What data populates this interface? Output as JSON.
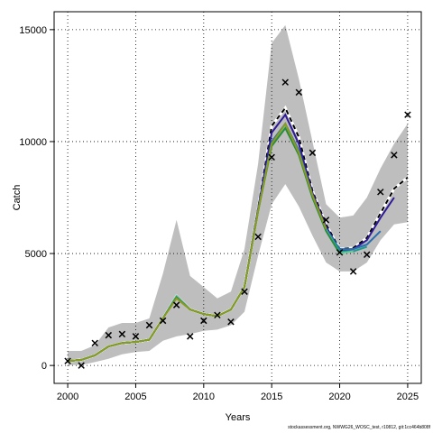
{
  "footer": "stockassessment.org, NWWG26_WOSC_test, r10812, git:1cc464b808f",
  "chart_data": {
    "type": "line",
    "title": "",
    "xlabel": "Years",
    "ylabel": "Catch",
    "xlim": [
      1999,
      2026
    ],
    "ylim": [
      -800,
      15800
    ],
    "xticks": [
      2000,
      2005,
      2010,
      2015,
      2020,
      2025
    ],
    "yticks": [
      0,
      5000,
      10000,
      15000
    ],
    "grid": true,
    "legend": "none",
    "band": {
      "x": [
        2000,
        2001,
        2002,
        2003,
        2004,
        2005,
        2006,
        2007,
        2008,
        2009,
        2010,
        2011,
        2012,
        2013,
        2014,
        2015,
        2016,
        2017,
        2018,
        2019,
        2020,
        2021,
        2022,
        2023,
        2024,
        2025
      ],
      "lower": [
        20,
        20,
        150,
        300,
        500,
        600,
        650,
        1100,
        1300,
        1400,
        1550,
        1600,
        1800,
        2400,
        4900,
        7200,
        8100,
        7100,
        5800,
        4600,
        4200,
        4200,
        4600,
        5600,
        6300,
        6400
      ],
      "upper": [
        650,
        650,
        900,
        1700,
        1900,
        1900,
        2100,
        4100,
        6500,
        4000,
        3500,
        3000,
        3300,
        5200,
        9000,
        14400,
        15200,
        12800,
        10000,
        7200,
        6600,
        6700,
        7500,
        8800,
        9900,
        10800
      ],
      "color": "#bebebe"
    },
    "series": [
      {
        "color": "#000000",
        "dashed": true,
        "x": [
          2000,
          2001,
          2002,
          2003,
          2004,
          2005,
          2006,
          2007,
          2008,
          2009,
          2010,
          2011,
          2012,
          2013,
          2014,
          2015,
          2016,
          2017,
          2018,
          2019,
          2020,
          2021,
          2022,
          2023,
          2024,
          2025
        ],
        "values": [
          200,
          250,
          450,
          850,
          1000,
          1050,
          1150,
          2100,
          3100,
          2500,
          2300,
          2200,
          2500,
          3500,
          7000,
          10700,
          11500,
          10200,
          7800,
          6300,
          5200,
          5250,
          5700,
          6800,
          7900,
          8400
        ]
      },
      {
        "color": "#2E1A99",
        "x": [
          2000,
          2001,
          2002,
          2003,
          2004,
          2005,
          2006,
          2007,
          2008,
          2009,
          2010,
          2011,
          2012,
          2013,
          2014,
          2015,
          2016,
          2017,
          2018,
          2019,
          2020,
          2021,
          2022,
          2023,
          2024
        ],
        "values": [
          200,
          250,
          450,
          850,
          1000,
          1050,
          1150,
          2100,
          3100,
          2500,
          2300,
          2200,
          2500,
          3500,
          7000,
          10400,
          11200,
          9900,
          7700,
          6200,
          5150,
          5200,
          5600,
          6600,
          7500
        ]
      },
      {
        "color": "#2A6FB0",
        "x": [
          2000,
          2001,
          2002,
          2003,
          2004,
          2005,
          2006,
          2007,
          2008,
          2009,
          2010,
          2011,
          2012,
          2013,
          2014,
          2015,
          2016,
          2017,
          2018,
          2019,
          2020,
          2021,
          2022,
          2023
        ],
        "values": [
          200,
          250,
          450,
          850,
          1000,
          1050,
          1150,
          2100,
          3100,
          2500,
          2300,
          2200,
          2500,
          3500,
          6900,
          10000,
          10800,
          9600,
          7600,
          6100,
          5200,
          5200,
          5400,
          6000
        ]
      },
      {
        "color": "#1E9B8A",
        "x": [
          2000,
          2001,
          2002,
          2003,
          2004,
          2005,
          2006,
          2007,
          2008,
          2009,
          2010,
          2011,
          2012,
          2013,
          2014,
          2015,
          2016,
          2017,
          2018,
          2019,
          2020,
          2021,
          2022
        ],
        "values": [
          200,
          250,
          450,
          850,
          1000,
          1050,
          1150,
          2100,
          3100,
          2500,
          2300,
          2200,
          2500,
          3500,
          6900,
          9900,
          10700,
          9500,
          7500,
          6050,
          5100,
          5100,
          5300
        ]
      },
      {
        "color": "#6CC99A",
        "x": [
          2000,
          2001,
          2002,
          2003,
          2004,
          2005,
          2006,
          2007,
          2008,
          2009,
          2010,
          2011,
          2012,
          2013,
          2014,
          2015,
          2016,
          2017,
          2018,
          2019,
          2020,
          2021
        ],
        "values": [
          200,
          250,
          450,
          850,
          1000,
          1050,
          1150,
          2100,
          3100,
          2500,
          2300,
          2200,
          2500,
          3500,
          6900,
          9900,
          10700,
          9500,
          7500,
          6050,
          5000,
          5100
        ]
      },
      {
        "color": "#2A8B3F",
        "x": [
          2000,
          2001,
          2002,
          2003,
          2004,
          2005,
          2006,
          2007,
          2008,
          2009,
          2010,
          2011,
          2012,
          2013,
          2014,
          2015,
          2016,
          2017,
          2018,
          2019,
          2020
        ],
        "values": [
          200,
          250,
          450,
          850,
          1000,
          1050,
          1150,
          2100,
          3050,
          2500,
          2300,
          2200,
          2500,
          3500,
          6900,
          9800,
          10600,
          9400,
          7500,
          6000,
          5000
        ]
      },
      {
        "color": "#8C9A1E",
        "x": [
          2000,
          2001,
          2002,
          2003,
          2004,
          2005,
          2006,
          2007,
          2008,
          2009,
          2010,
          2011,
          2012,
          2013,
          2014,
          2015,
          2016,
          2017,
          2018,
          2019
        ],
        "values": [
          200,
          250,
          450,
          850,
          1000,
          1050,
          1150,
          2100,
          3000,
          2500,
          2300,
          2200,
          2500,
          3500,
          6900,
          9900,
          10800,
          9500,
          7600,
          6100
        ]
      }
    ],
    "observed": {
      "x": [
        2000,
        2001,
        2002,
        2003,
        2004,
        2005,
        2006,
        2007,
        2008,
        2009,
        2010,
        2011,
        2012,
        2013,
        2014,
        2015,
        2016,
        2017,
        2018,
        2019,
        2020,
        2021,
        2022,
        2023,
        2024,
        2025
      ],
      "values": [
        200,
        0,
        1000,
        1350,
        1400,
        1300,
        1800,
        2000,
        2700,
        1300,
        2000,
        2250,
        1950,
        3300,
        5750,
        9300,
        12650,
        12200,
        9500,
        6500,
        5050,
        4200,
        4950,
        7750,
        9400,
        11200
      ]
    }
  }
}
